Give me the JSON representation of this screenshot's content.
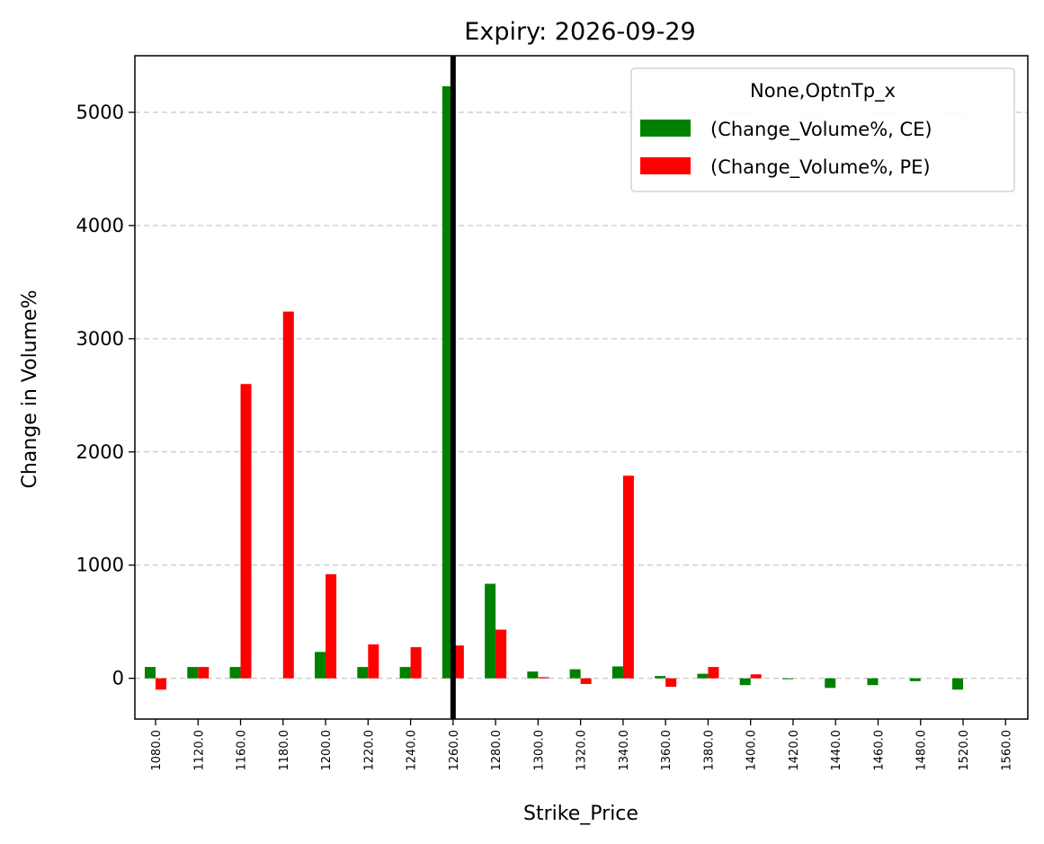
{
  "chart_data": {
    "type": "bar",
    "title": "Expiry: 2026-09-29",
    "xlabel": "Strike_Price",
    "ylabel": "Change in Volume%",
    "categories": [
      "1080.0",
      "1120.0",
      "1160.0",
      "1180.0",
      "1200.0",
      "1220.0",
      "1240.0",
      "1260.0",
      "1280.0",
      "1300.0",
      "1320.0",
      "1340.0",
      "1360.0",
      "1380.0",
      "1400.0",
      "1420.0",
      "1440.0",
      "1460.0",
      "1480.0",
      "1520.0",
      "1560.0"
    ],
    "series": [
      {
        "name": "(Change_Volume%, CE)",
        "color": "#008000",
        "values": [
          100,
          100,
          100,
          0,
          233,
          100,
          100,
          5230,
          835,
          60,
          80,
          105,
          20,
          40,
          -60,
          -5,
          -85,
          -60,
          -25,
          -100,
          0
        ]
      },
      {
        "name": "(Change_Volume%, PE)",
        "color": "#ff0000",
        "values": [
          -100,
          100,
          2600,
          3240,
          920,
          300,
          275,
          290,
          430,
          10,
          -50,
          1790,
          -75,
          100,
          35,
          0,
          0,
          0,
          0,
          0,
          0
        ]
      }
    ],
    "yticks": [
      0,
      1000,
      2000,
      3000,
      4000,
      5000
    ],
    "ylim": [
      -360,
      5500
    ],
    "vline_category": "1260.0",
    "legend": {
      "title": "None,OptnTp_x",
      "position": "top-right"
    },
    "grid": "y-dashed"
  }
}
